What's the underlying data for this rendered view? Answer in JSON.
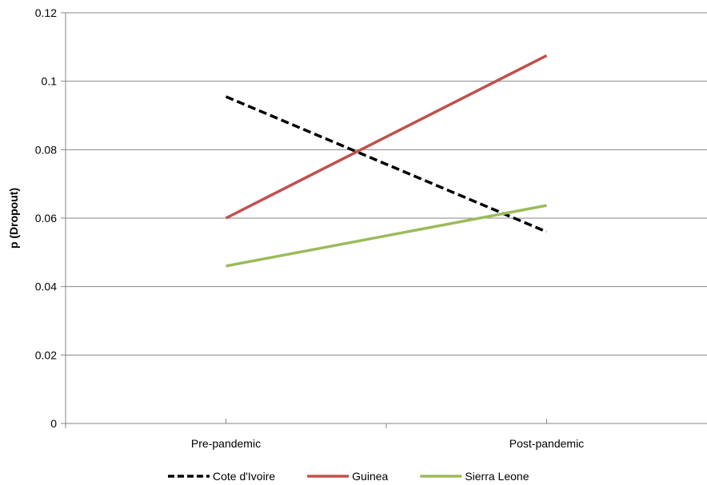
{
  "chart_data": {
    "type": "line",
    "title": "",
    "xlabel": "",
    "ylabel": "p (Dropout)",
    "categories": [
      "Pre-pandemic",
      "Post-pandemic"
    ],
    "ylim": [
      0,
      0.12
    ],
    "yticks": [
      "0",
      "0.02",
      "0.04",
      "0.06",
      "0.08",
      "0.1",
      "0.12"
    ],
    "grid": true,
    "legend_position": "bottom",
    "series": [
      {
        "name": "Cote d'Ivoire",
        "values": [
          0.0955,
          0.056
        ],
        "color": "#000000",
        "dashed": true
      },
      {
        "name": "Guinea",
        "values": [
          0.06,
          0.1075
        ],
        "color": "#c0504d",
        "dashed": false
      },
      {
        "name": "Sierra Leone",
        "values": [
          0.046,
          0.0637
        ],
        "color": "#9bbb59",
        "dashed": false
      }
    ]
  }
}
